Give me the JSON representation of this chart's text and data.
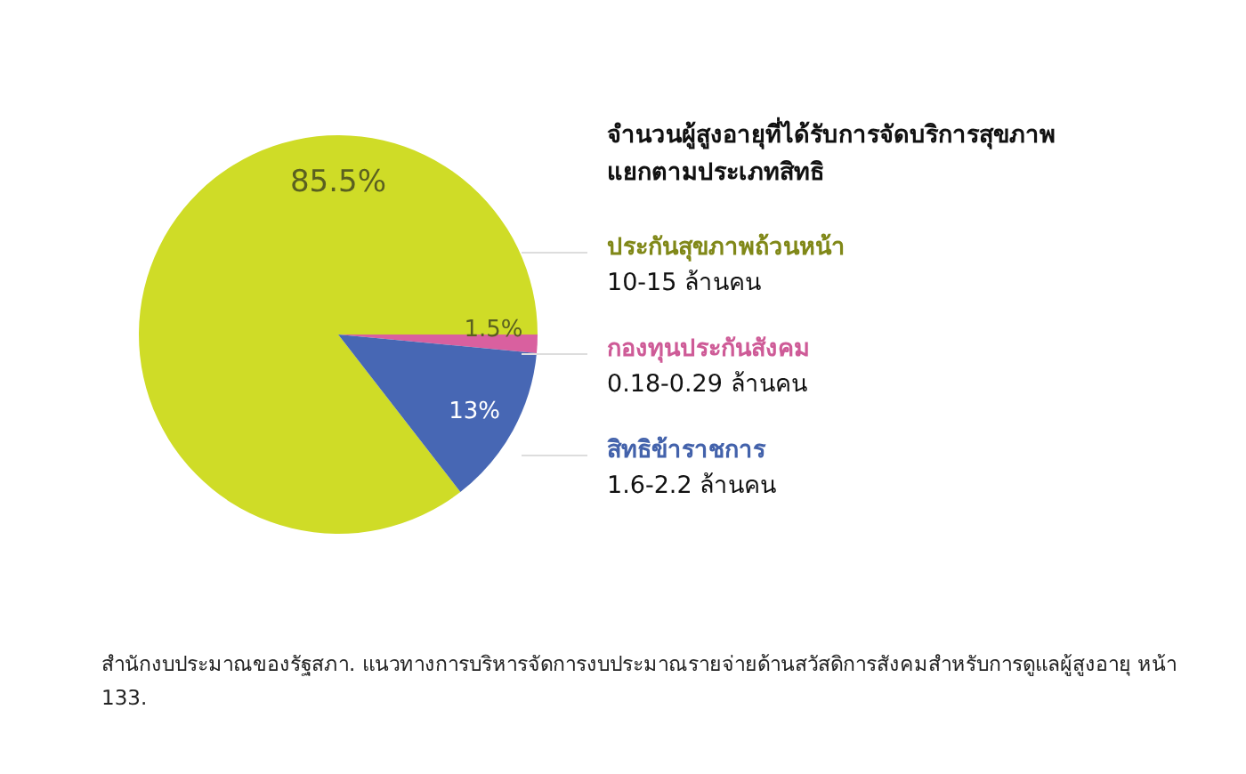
{
  "chart_data": {
    "type": "pie",
    "title": "จำนวนผู้สูงอายุที่ได้รับการจัดบริการสุขภาพ แยกตามประเภทสิทธิ",
    "categories": [
      "ประกันสุขภาพถ้วนหน้า",
      "กองทุนประกันสังคม",
      "สิทธิข้าราชการ"
    ],
    "values": [
      85.5,
      1.5,
      13
    ],
    "value_labels": [
      "85.5%",
      "1.5%",
      "13%"
    ],
    "colors": [
      "#cfdc27",
      "#d9609f",
      "#4767b4"
    ],
    "annotations": [
      "10-15 ล้านคน",
      "0.18-0.29 ล้านคน",
      "1.6-2.2 ล้านคน",
      "สำนักงบประมาณของรัฐสภา. แนวทางการบริหารจัดการงบประมาณรายจ่ายด้านสวัสดิการสังคมสำหรับการดูแลผู้สูงอายุ หน้า 133."
    ]
  }
}
